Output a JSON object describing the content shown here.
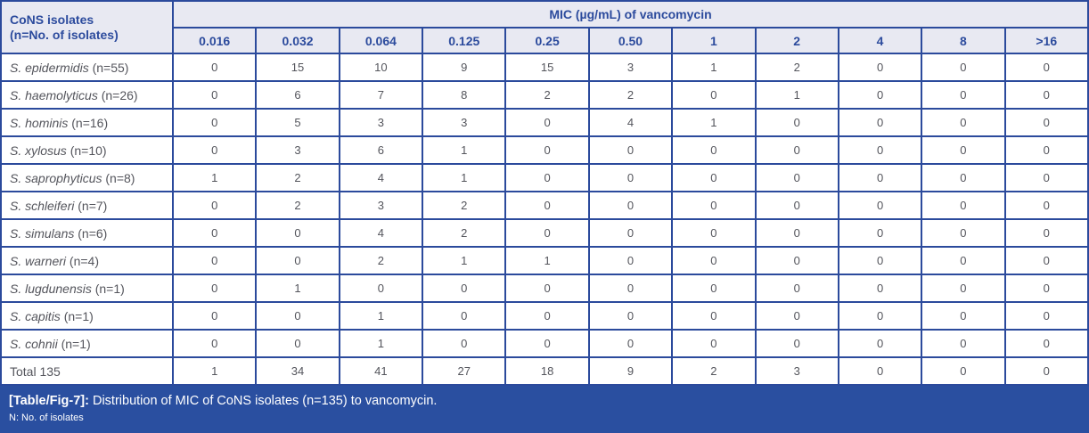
{
  "table": {
    "corner_header_line1": "CoNS isolates",
    "corner_header_line2": "(n=No. of isolates)",
    "mic_group_header": "MIC (µg/mL) of vancomycin",
    "mic_columns": [
      "0.016",
      "0.032",
      "0.064",
      "0.125",
      "0.25",
      "0.50",
      "1",
      "2",
      "4",
      "8",
      ">16"
    ],
    "rows": [
      {
        "species": "S. epidermidis",
        "count": "(n=55)",
        "values": [
          "0",
          "15",
          "10",
          "9",
          "15",
          "3",
          "1",
          "2",
          "0",
          "0",
          "0"
        ]
      },
      {
        "species": "S. haemolyticus",
        "count": "(n=26)",
        "values": [
          "0",
          "6",
          "7",
          "8",
          "2",
          "2",
          "0",
          "1",
          "0",
          "0",
          "0"
        ]
      },
      {
        "species": "S. hominis",
        "count": "(n=16)",
        "values": [
          "0",
          "5",
          "3",
          "3",
          "0",
          "4",
          "1",
          "0",
          "0",
          "0",
          "0"
        ]
      },
      {
        "species": "S. xylosus",
        "count": "(n=10)",
        "values": [
          "0",
          "3",
          "6",
          "1",
          "0",
          "0",
          "0",
          "0",
          "0",
          "0",
          "0"
        ]
      },
      {
        "species": "S. saprophyticus",
        "count": "(n=8)",
        "values": [
          "1",
          "2",
          "4",
          "1",
          "0",
          "0",
          "0",
          "0",
          "0",
          "0",
          "0"
        ]
      },
      {
        "species": "S. schleiferi",
        "count": "(n=7)",
        "values": [
          "0",
          "2",
          "3",
          "2",
          "0",
          "0",
          "0",
          "0",
          "0",
          "0",
          "0"
        ]
      },
      {
        "species": "S. simulans",
        "count": "(n=6)",
        "values": [
          "0",
          "0",
          "4",
          "2",
          "0",
          "0",
          "0",
          "0",
          "0",
          "0",
          "0"
        ]
      },
      {
        "species": "S. warneri",
        "count": "(n=4)",
        "values": [
          "0",
          "0",
          "2",
          "1",
          "1",
          "0",
          "0",
          "0",
          "0",
          "0",
          "0"
        ]
      },
      {
        "species": "S. lugdunensis",
        "count": "(n=1)",
        "values": [
          "0",
          "1",
          "0",
          "0",
          "0",
          "0",
          "0",
          "0",
          "0",
          "0",
          "0"
        ]
      },
      {
        "species": "S. capitis",
        "count": "(n=1)",
        "values": [
          "0",
          "0",
          "1",
          "0",
          "0",
          "0",
          "0",
          "0",
          "0",
          "0",
          "0"
        ]
      },
      {
        "species": "S. cohnii",
        "count": "(n=1)",
        "values": [
          "0",
          "0",
          "1",
          "0",
          "0",
          "0",
          "0",
          "0",
          "0",
          "0",
          "0"
        ]
      }
    ],
    "total_row": {
      "label": "Total 135",
      "values": [
        "1",
        "34",
        "41",
        "27",
        "18",
        "9",
        "2",
        "3",
        "0",
        "0",
        "0"
      ]
    }
  },
  "caption": {
    "tag": "[Table/Fig-7]:",
    "text": "Distribution of MIC of CoNS isolates (n=135) to vancomycin.",
    "note": "N: No. of isolates"
  },
  "colors": {
    "border": "#2b4a9c",
    "header_bg": "#e8e9f2",
    "header_text": "#2c4b9d",
    "body_text": "#54555c",
    "caption_bg": "#2a4fa0",
    "caption_text": "#ffffff"
  }
}
